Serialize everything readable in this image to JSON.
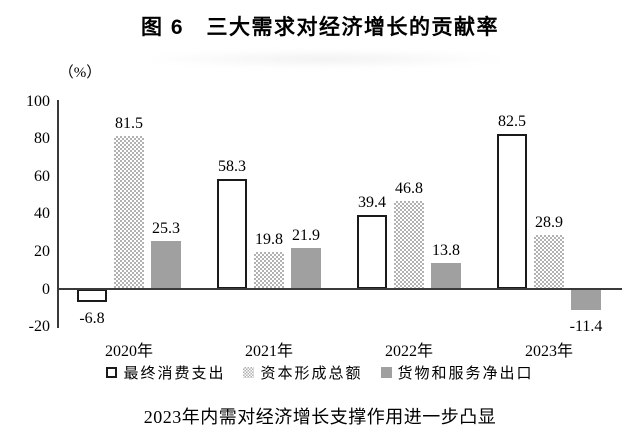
{
  "title": "图 6　三大需求对经济增长的贡献率",
  "caption": "2023年内需对经济增长支撑作用进一步凸显",
  "colors": {
    "axis": "#3a3a3a",
    "bar_outline": "#1a1a1a",
    "bar_pattern_dot": "#b2b2b2",
    "bar_solid_gray": "#a0a0a0",
    "background": "#ffffff",
    "text": "#000000"
  },
  "chart_data": {
    "type": "bar",
    "title": "图 6　三大需求对经济增长的贡献率",
    "unit_label": "（%）",
    "xlabel": "",
    "ylabel": "（%）",
    "ylim": [
      -20,
      100
    ],
    "y_ticks": [
      100,
      80,
      60,
      40,
      20,
      0,
      -20
    ],
    "grid": false,
    "legend_position": "bottom",
    "categories": [
      "2020年",
      "2021年",
      "2022年",
      "2023年"
    ],
    "series": [
      {
        "name": "最终消费支出",
        "style": "outline",
        "values": [
          -6.8,
          58.3,
          39.4,
          82.5
        ]
      },
      {
        "name": "资本形成总额",
        "style": "dotted",
        "values": [
          81.5,
          19.8,
          46.8,
          28.9
        ]
      },
      {
        "name": "货物和服务净出口",
        "style": "solid",
        "values": [
          25.3,
          21.9,
          13.8,
          -11.4
        ]
      }
    ]
  }
}
